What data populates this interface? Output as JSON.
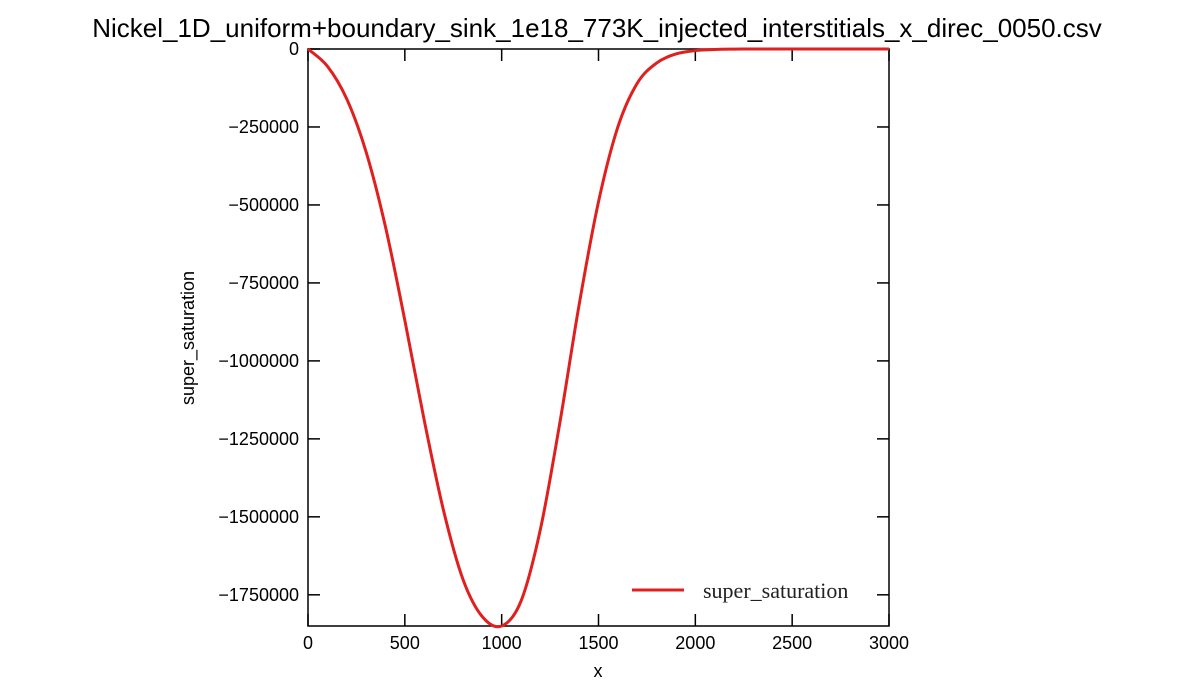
{
  "chart_data": {
    "type": "line",
    "title": "Nickel_1D_uniform+boundary_sink_1e18_773K_injected_interstitials_x_direc_0050.csv",
    "xlabel": "x",
    "ylabel": "super_saturation",
    "xlim": [
      0,
      3000
    ],
    "ylim": [
      -1850000,
      0
    ],
    "x_ticks": [
      "0",
      "500",
      "1000",
      "1500",
      "2000",
      "2500",
      "3000"
    ],
    "y_ticks": [
      "0",
      "−250000",
      "−500000",
      "−750000",
      "−1000000",
      "−1250000",
      "−1500000",
      "−1750000"
    ],
    "grid": false,
    "legend_position": "lower-right",
    "series": [
      {
        "name": "super_saturation",
        "color": "#e0201e",
        "x": [
          0,
          100,
          200,
          300,
          400,
          500,
          600,
          700,
          800,
          900,
          1000,
          1100,
          1200,
          1300,
          1400,
          1500,
          1600,
          1700,
          1800,
          1900,
          2000,
          2100,
          2200,
          2300,
          2400,
          2500,
          2600,
          2700,
          2800,
          2900,
          3000
        ],
        "y": [
          0,
          -55000,
          -160000,
          -330000,
          -570000,
          -870000,
          -1190000,
          -1480000,
          -1700000,
          -1820000,
          -1850000,
          -1770000,
          -1540000,
          -1200000,
          -820000,
          -490000,
          -250000,
          -110000,
          -45000,
          -16000,
          -5000,
          -1500,
          -400,
          -100,
          -20,
          0,
          0,
          0,
          0,
          0,
          0
        ]
      }
    ]
  }
}
